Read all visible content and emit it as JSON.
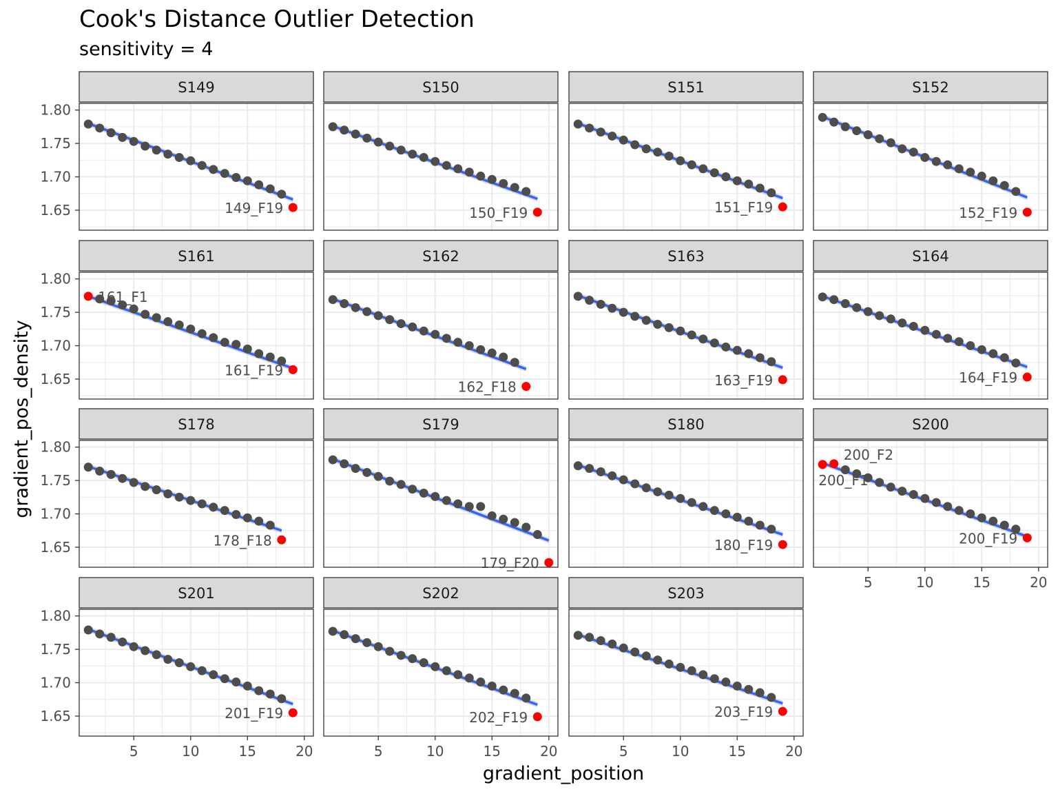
{
  "title": "Cook's Distance Outlier Detection",
  "subtitle": "sensitivity = 4",
  "chart_data": {
    "type": "scatter",
    "layout": "facet_wrap",
    "xlabel": "gradient_position",
    "ylabel": "gradient_pos_density",
    "x_ticks": [
      5,
      10,
      15,
      20
    ],
    "y_ticks": [
      "1.65",
      "1.70",
      "1.75",
      "1.80"
    ],
    "xlim": [
      0.2,
      20.8
    ],
    "ylim": [
      1.62,
      1.81
    ],
    "grid": true,
    "colors": {
      "point": "#4d4d4d",
      "outlier": "#ff0000",
      "fit_line": "#3366ff",
      "band": "#bfbfbf",
      "strip": "#d9d9d9",
      "grid": "#ebebeb"
    },
    "panels": [
      {
        "name": "S149",
        "x": [
          1,
          2,
          3,
          4,
          5,
          6,
          7,
          8,
          9,
          10,
          11,
          12,
          13,
          14,
          15,
          16,
          17,
          18
        ],
        "y": [
          1.779,
          1.773,
          1.766,
          1.759,
          1.753,
          1.746,
          1.74,
          1.734,
          1.729,
          1.724,
          1.717,
          1.711,
          1.705,
          1.699,
          1.694,
          1.688,
          1.682,
          1.674
        ],
        "outliers": [
          {
            "x": 19,
            "y": 1.654,
            "label": "149_F19"
          }
        ],
        "fit": {
          "x": [
            1,
            19
          ],
          "y": [
            1.78,
            1.666
          ]
        }
      },
      {
        "name": "S150",
        "x": [
          1,
          2,
          3,
          4,
          5,
          6,
          7,
          8,
          9,
          10,
          11,
          12,
          13,
          14,
          15,
          16,
          17,
          18
        ],
        "y": [
          1.775,
          1.77,
          1.764,
          1.758,
          1.752,
          1.746,
          1.74,
          1.734,
          1.729,
          1.723,
          1.717,
          1.712,
          1.707,
          1.701,
          1.696,
          1.69,
          1.684,
          1.678
        ],
        "outliers": [
          {
            "x": 19,
            "y": 1.647,
            "label": "150_F19"
          }
        ],
        "fit": {
          "x": [
            1,
            19
          ],
          "y": [
            1.776,
            1.667
          ]
        }
      },
      {
        "name": "S151",
        "x": [
          1,
          2,
          3,
          4,
          5,
          6,
          7,
          8,
          9,
          10,
          11,
          12,
          13,
          14,
          15,
          16,
          17,
          18
        ],
        "y": [
          1.779,
          1.773,
          1.767,
          1.761,
          1.755,
          1.748,
          1.742,
          1.737,
          1.731,
          1.724,
          1.718,
          1.712,
          1.706,
          1.7,
          1.694,
          1.689,
          1.683,
          1.676
        ],
        "outliers": [
          {
            "x": 19,
            "y": 1.655,
            "label": "151_F19"
          }
        ],
        "fit": {
          "x": [
            1,
            19
          ],
          "y": [
            1.78,
            1.668
          ]
        }
      },
      {
        "name": "S152",
        "x": [
          1,
          2,
          3,
          4,
          5,
          6,
          7,
          8,
          9,
          10,
          11,
          12,
          13,
          14,
          15,
          16,
          17,
          18
        ],
        "y": [
          1.789,
          1.782,
          1.775,
          1.769,
          1.763,
          1.757,
          1.751,
          1.742,
          1.737,
          1.729,
          1.723,
          1.718,
          1.712,
          1.707,
          1.701,
          1.694,
          1.687,
          1.678
        ],
        "outliers": [
          {
            "x": 19,
            "y": 1.647,
            "label": "152_F19"
          }
        ],
        "fit": {
          "x": [
            1,
            19
          ],
          "y": [
            1.79,
            1.669
          ]
        }
      },
      {
        "name": "S161",
        "x": [
          2,
          3,
          4,
          5,
          6,
          7,
          8,
          9,
          10,
          11,
          12,
          13,
          14,
          15,
          16,
          17,
          18
        ],
        "y": [
          1.77,
          1.767,
          1.761,
          1.755,
          1.747,
          1.742,
          1.736,
          1.731,
          1.725,
          1.718,
          1.712,
          1.705,
          1.702,
          1.695,
          1.688,
          1.683,
          1.677
        ],
        "outliers": [
          {
            "x": 1,
            "y": 1.774,
            "label": "161_F1"
          },
          {
            "x": 19,
            "y": 1.664,
            "label": "161_F19"
          }
        ],
        "fit": {
          "x": [
            1,
            19
          ],
          "y": [
            1.774,
            1.666
          ]
        }
      },
      {
        "name": "S162",
        "x": [
          1,
          2,
          3,
          4,
          5,
          6,
          7,
          8,
          9,
          10,
          11,
          12,
          13,
          14,
          15,
          16,
          17
        ],
        "y": [
          1.769,
          1.763,
          1.757,
          1.751,
          1.745,
          1.739,
          1.733,
          1.728,
          1.722,
          1.717,
          1.711,
          1.705,
          1.7,
          1.694,
          1.689,
          1.683,
          1.675
        ],
        "outliers": [
          {
            "x": 18,
            "y": 1.639,
            "label": "162_F18"
          }
        ],
        "fit": {
          "x": [
            1,
            18
          ],
          "y": [
            1.77,
            1.665
          ]
        }
      },
      {
        "name": "S163",
        "x": [
          1,
          2,
          3,
          4,
          5,
          6,
          7,
          8,
          9,
          10,
          11,
          12,
          13,
          14,
          15,
          16,
          17,
          18
        ],
        "y": [
          1.774,
          1.768,
          1.762,
          1.756,
          1.75,
          1.744,
          1.738,
          1.732,
          1.727,
          1.722,
          1.716,
          1.71,
          1.704,
          1.698,
          1.693,
          1.688,
          1.682,
          1.676
        ],
        "outliers": [
          {
            "x": 19,
            "y": 1.649,
            "label": "163_F19"
          }
        ],
        "fit": {
          "x": [
            1,
            19
          ],
          "y": [
            1.775,
            1.667
          ]
        }
      },
      {
        "name": "S164",
        "x": [
          1,
          2,
          3,
          4,
          5,
          6,
          7,
          8,
          9,
          10,
          11,
          12,
          13,
          14,
          15,
          16,
          17,
          18
        ],
        "y": [
          1.773,
          1.769,
          1.763,
          1.757,
          1.751,
          1.745,
          1.74,
          1.734,
          1.729,
          1.723,
          1.717,
          1.711,
          1.706,
          1.7,
          1.694,
          1.688,
          1.682,
          1.674
        ],
        "outliers": [
          {
            "x": 19,
            "y": 1.653,
            "label": "164_F19"
          }
        ],
        "fit": {
          "x": [
            1,
            19
          ],
          "y": [
            1.774,
            1.668
          ]
        }
      },
      {
        "name": "S178",
        "x": [
          1,
          2,
          3,
          4,
          5,
          6,
          7,
          8,
          9,
          10,
          11,
          12,
          13,
          14,
          15,
          16,
          17
        ],
        "y": [
          1.77,
          1.764,
          1.759,
          1.753,
          1.747,
          1.741,
          1.736,
          1.73,
          1.725,
          1.72,
          1.715,
          1.71,
          1.705,
          1.699,
          1.694,
          1.689,
          1.683
        ],
        "outliers": [
          {
            "x": 18,
            "y": 1.661,
            "label": "178_F18"
          }
        ],
        "fit": {
          "x": [
            1,
            18
          ],
          "y": [
            1.771,
            1.675
          ]
        }
      },
      {
        "name": "S179",
        "x": [
          1,
          2,
          3,
          4,
          5,
          6,
          7,
          8,
          9,
          10,
          11,
          12,
          13,
          14,
          15,
          16,
          17,
          18,
          19
        ],
        "y": [
          1.781,
          1.775,
          1.768,
          1.762,
          1.756,
          1.749,
          1.744,
          1.737,
          1.731,
          1.726,
          1.72,
          1.715,
          1.711,
          1.711,
          1.697,
          1.692,
          1.687,
          1.68,
          1.669
        ],
        "outliers": [
          {
            "x": 20,
            "y": 1.627,
            "label": "179_F20"
          }
        ],
        "fit": {
          "x": [
            1,
            20
          ],
          "y": [
            1.782,
            1.66
          ]
        }
      },
      {
        "name": "S180",
        "x": [
          1,
          2,
          3,
          4,
          5,
          6,
          7,
          8,
          9,
          10,
          11,
          12,
          13,
          14,
          15,
          16,
          17,
          18
        ],
        "y": [
          1.772,
          1.768,
          1.763,
          1.757,
          1.751,
          1.745,
          1.739,
          1.733,
          1.728,
          1.723,
          1.717,
          1.711,
          1.705,
          1.7,
          1.695,
          1.689,
          1.683,
          1.677
        ],
        "outliers": [
          {
            "x": 19,
            "y": 1.654,
            "label": "180_F19"
          }
        ],
        "fit": {
          "x": [
            1,
            19
          ],
          "y": [
            1.773,
            1.669
          ]
        }
      },
      {
        "name": "S200",
        "x": [
          3,
          4,
          5,
          6,
          7,
          8,
          9,
          10,
          11,
          12,
          13,
          14,
          15,
          16,
          17,
          18
        ],
        "y": [
          1.766,
          1.76,
          1.754,
          1.747,
          1.74,
          1.734,
          1.729,
          1.723,
          1.717,
          1.711,
          1.705,
          1.7,
          1.694,
          1.689,
          1.683,
          1.677
        ],
        "outliers": [
          {
            "x": 1,
            "y": 1.774,
            "label": "200_F1"
          },
          {
            "x": 2,
            "y": 1.775,
            "label": "200_F2"
          },
          {
            "x": 19,
            "y": 1.664,
            "label": "200_F19"
          }
        ],
        "fit": {
          "x": [
            1,
            19
          ],
          "y": [
            1.776,
            1.666
          ]
        }
      },
      {
        "name": "S201",
        "x": [
          1,
          2,
          3,
          4,
          5,
          6,
          7,
          8,
          9,
          10,
          11,
          12,
          13,
          14,
          15,
          16,
          17,
          18
        ],
        "y": [
          1.779,
          1.773,
          1.768,
          1.761,
          1.754,
          1.748,
          1.742,
          1.735,
          1.73,
          1.724,
          1.718,
          1.712,
          1.706,
          1.701,
          1.695,
          1.688,
          1.683,
          1.676
        ],
        "outliers": [
          {
            "x": 19,
            "y": 1.655,
            "label": "201_F19"
          }
        ],
        "fit": {
          "x": [
            1,
            19
          ],
          "y": [
            1.78,
            1.668
          ]
        }
      },
      {
        "name": "S202",
        "x": [
          1,
          2,
          3,
          4,
          5,
          6,
          7,
          8,
          9,
          10,
          11,
          12,
          13,
          14,
          15,
          16,
          17,
          18
        ],
        "y": [
          1.777,
          1.772,
          1.766,
          1.76,
          1.754,
          1.747,
          1.741,
          1.736,
          1.73,
          1.724,
          1.718,
          1.712,
          1.707,
          1.701,
          1.695,
          1.689,
          1.684,
          1.677
        ],
        "outliers": [
          {
            "x": 19,
            "y": 1.649,
            "label": "202_F19"
          }
        ],
        "fit": {
          "x": [
            1,
            19
          ],
          "y": [
            1.778,
            1.667
          ]
        }
      },
      {
        "name": "S203",
        "x": [
          1,
          2,
          3,
          4,
          5,
          6,
          7,
          8,
          9,
          10,
          11,
          12,
          13,
          14,
          15,
          16,
          17,
          18
        ],
        "y": [
          1.771,
          1.768,
          1.763,
          1.758,
          1.752,
          1.746,
          1.74,
          1.734,
          1.728,
          1.723,
          1.718,
          1.712,
          1.706,
          1.701,
          1.695,
          1.69,
          1.685,
          1.678
        ],
        "outliers": [
          {
            "x": 19,
            "y": 1.657,
            "label": "203_F19"
          }
        ],
        "fit": {
          "x": [
            1,
            19
          ],
          "y": [
            1.772,
            1.669
          ]
        }
      }
    ]
  }
}
